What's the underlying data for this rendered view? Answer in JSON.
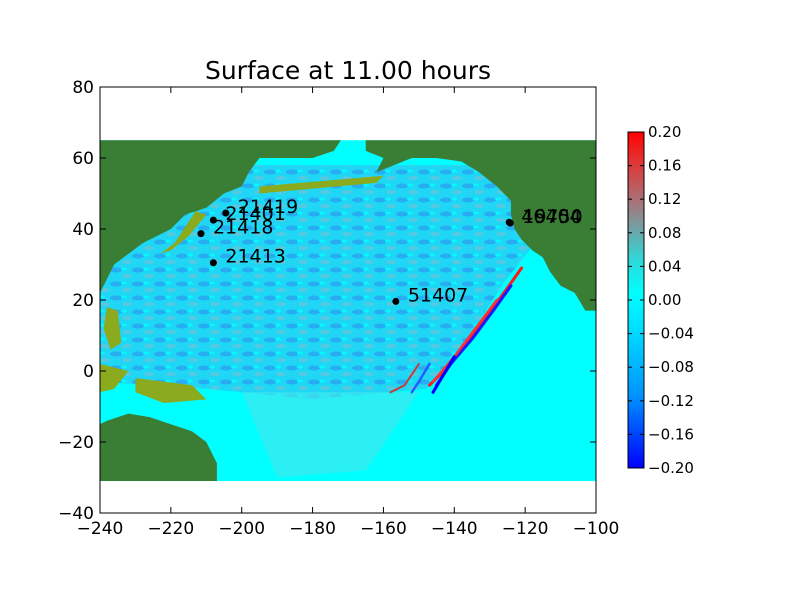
{
  "chart_data": {
    "type": "heatmap",
    "title": "Surface at 11.00 hours",
    "xlabel": "",
    "ylabel": "",
    "xlim": [
      -240,
      -100
    ],
    "ylim": [
      -40,
      80
    ],
    "xticks": [
      -240,
      -220,
      -200,
      -180,
      -160,
      -140,
      -120,
      -100
    ],
    "yticks": [
      -40,
      -20,
      0,
      20,
      40,
      60,
      80
    ],
    "xtick_labels": [
      "−240",
      "−220",
      "−200",
      "−180",
      "−160",
      "−140",
      "−120",
      "−100"
    ],
    "ytick_labels": [
      "−40",
      "−20",
      "0",
      "20",
      "40",
      "60",
      "80"
    ],
    "data_extent": {
      "x": [
        -240,
        -100
      ],
      "y": [
        -31,
        65
      ]
    },
    "colorbar": {
      "range": [
        -0.2,
        0.2
      ],
      "ticks": [
        -0.2,
        -0.16,
        -0.12,
        -0.08,
        -0.04,
        0.0,
        0.04,
        0.08,
        0.12,
        0.16,
        0.2
      ],
      "tick_labels": [
        "−0.20",
        "−0.16",
        "−0.12",
        "−0.08",
        "−0.04",
        "0.00",
        "0.04",
        "0.08",
        "0.12",
        "0.16",
        "0.20"
      ],
      "colors": [
        "#0000ff",
        "#00c8ff",
        "#00ffff",
        "#a07070",
        "#ff0000"
      ]
    },
    "gauges": [
      {
        "label": "21419",
        "x": -204.5,
        "y": 44.5
      },
      {
        "label": "21401",
        "x": -208,
        "y": 42.5
      },
      {
        "label": "21418",
        "x": -211.5,
        "y": 38.7
      },
      {
        "label": "21413",
        "x": -208,
        "y": 30.5
      },
      {
        "label": "51407",
        "x": -156.5,
        "y": 19.6
      },
      {
        "label": "46404",
        "x": -124.5,
        "y": 41.9
      },
      {
        "label": "19750",
        "x": -124.2,
        "y": 41.7
      }
    ],
    "colors": {
      "land": "#3a7d34",
      "shallow": "#8caa1e",
      "ocean": "#00ffff",
      "ocean_wave": "#28c8f0"
    }
  }
}
